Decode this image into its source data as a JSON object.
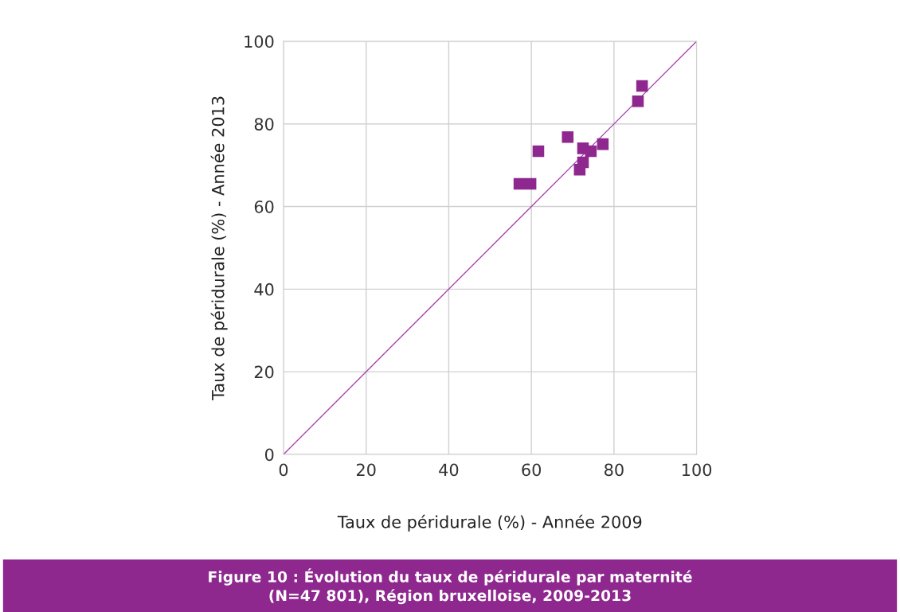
{
  "chart_data": {
    "type": "scatter",
    "title": "Figure 10 : Évolution du taux de péridurale par maternité\n(N=47 801), Région bruxelloise, 2009-2013",
    "xlabel": "Taux de péridurale (%) - Année 2009",
    "ylabel": "Taux de péridurale (%) - Année 2013",
    "series": [
      {
        "color": "#8e288f",
        "marker": "square",
        "x": [
          86.8,
          85.8,
          68.8,
          72.5,
          74.4,
          77.3,
          61.7,
          72.5,
          71.7,
          57.1,
          59.8
        ],
        "values": [
          89.2,
          85.5,
          76.8,
          74.1,
          73.4,
          75.1,
          73.4,
          70.7,
          68.9,
          65.5,
          65.5
        ]
      },
      {
        "type": "line",
        "color": "#a845b0",
        "marker": "none",
        "x": [
          0,
          100
        ],
        "values": [
          0,
          100
        ]
      }
    ],
    "xlim": [
      0,
      100
    ],
    "ylim": [
      0,
      100
    ],
    "xticks": [
      0,
      20,
      40,
      60,
      80,
      100
    ],
    "yticks": [
      0,
      20,
      40,
      60,
      80,
      100
    ],
    "grid": true,
    "legend": false
  }
}
